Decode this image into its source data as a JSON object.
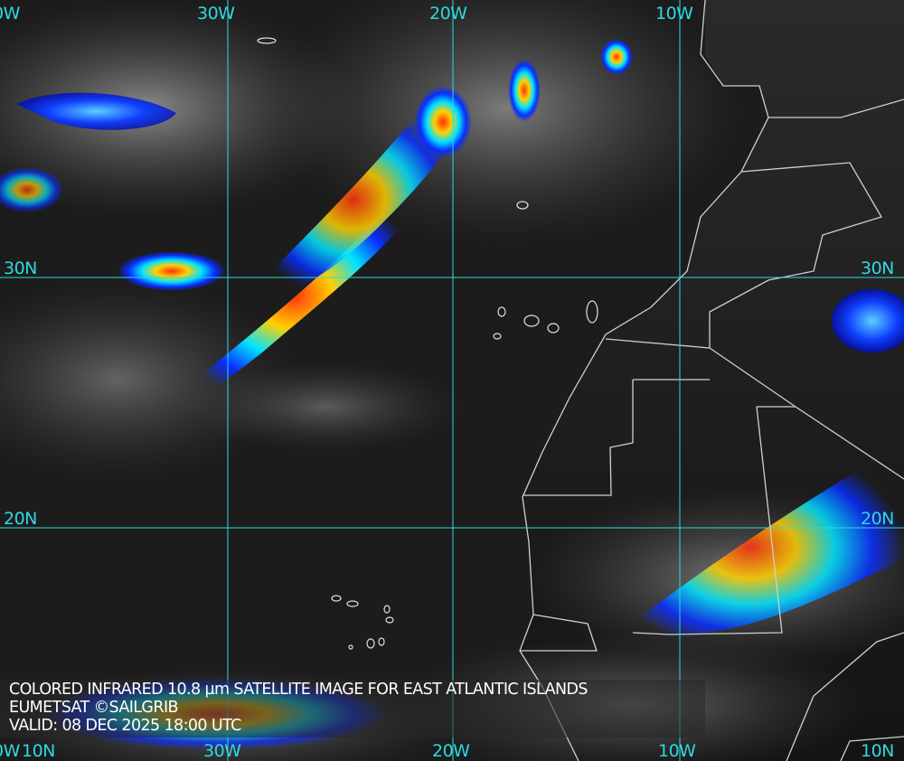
{
  "caption": {
    "title": "COLORED INFRARED 10.8 µm SATELLITE IMAGE FOR EAST ATLANTIC ISLANDS",
    "source": "EUMETSAT ©SAILGRIB",
    "valid": "VALID:  08 DEC 2025 18:00 UTC"
  },
  "grid": {
    "longitudes_top": [
      "0W",
      "30W",
      "20W",
      "10W"
    ],
    "longitudes_bottom": [
      "0W",
      "30W",
      "20W",
      "10W"
    ],
    "latitudes_left": [
      "30N",
      "20N",
      "10N"
    ],
    "latitudes_right": [
      "30N",
      "20N",
      "10N"
    ]
  },
  "colors": {
    "grid": "#2fd8e0",
    "coast": "#d0d0d0",
    "cloud_cold": "#0a2cff",
    "cloud_mid": "#00e5ff",
    "cloud_warm": "#ffee00",
    "cloud_hot": "#ff3010"
  }
}
